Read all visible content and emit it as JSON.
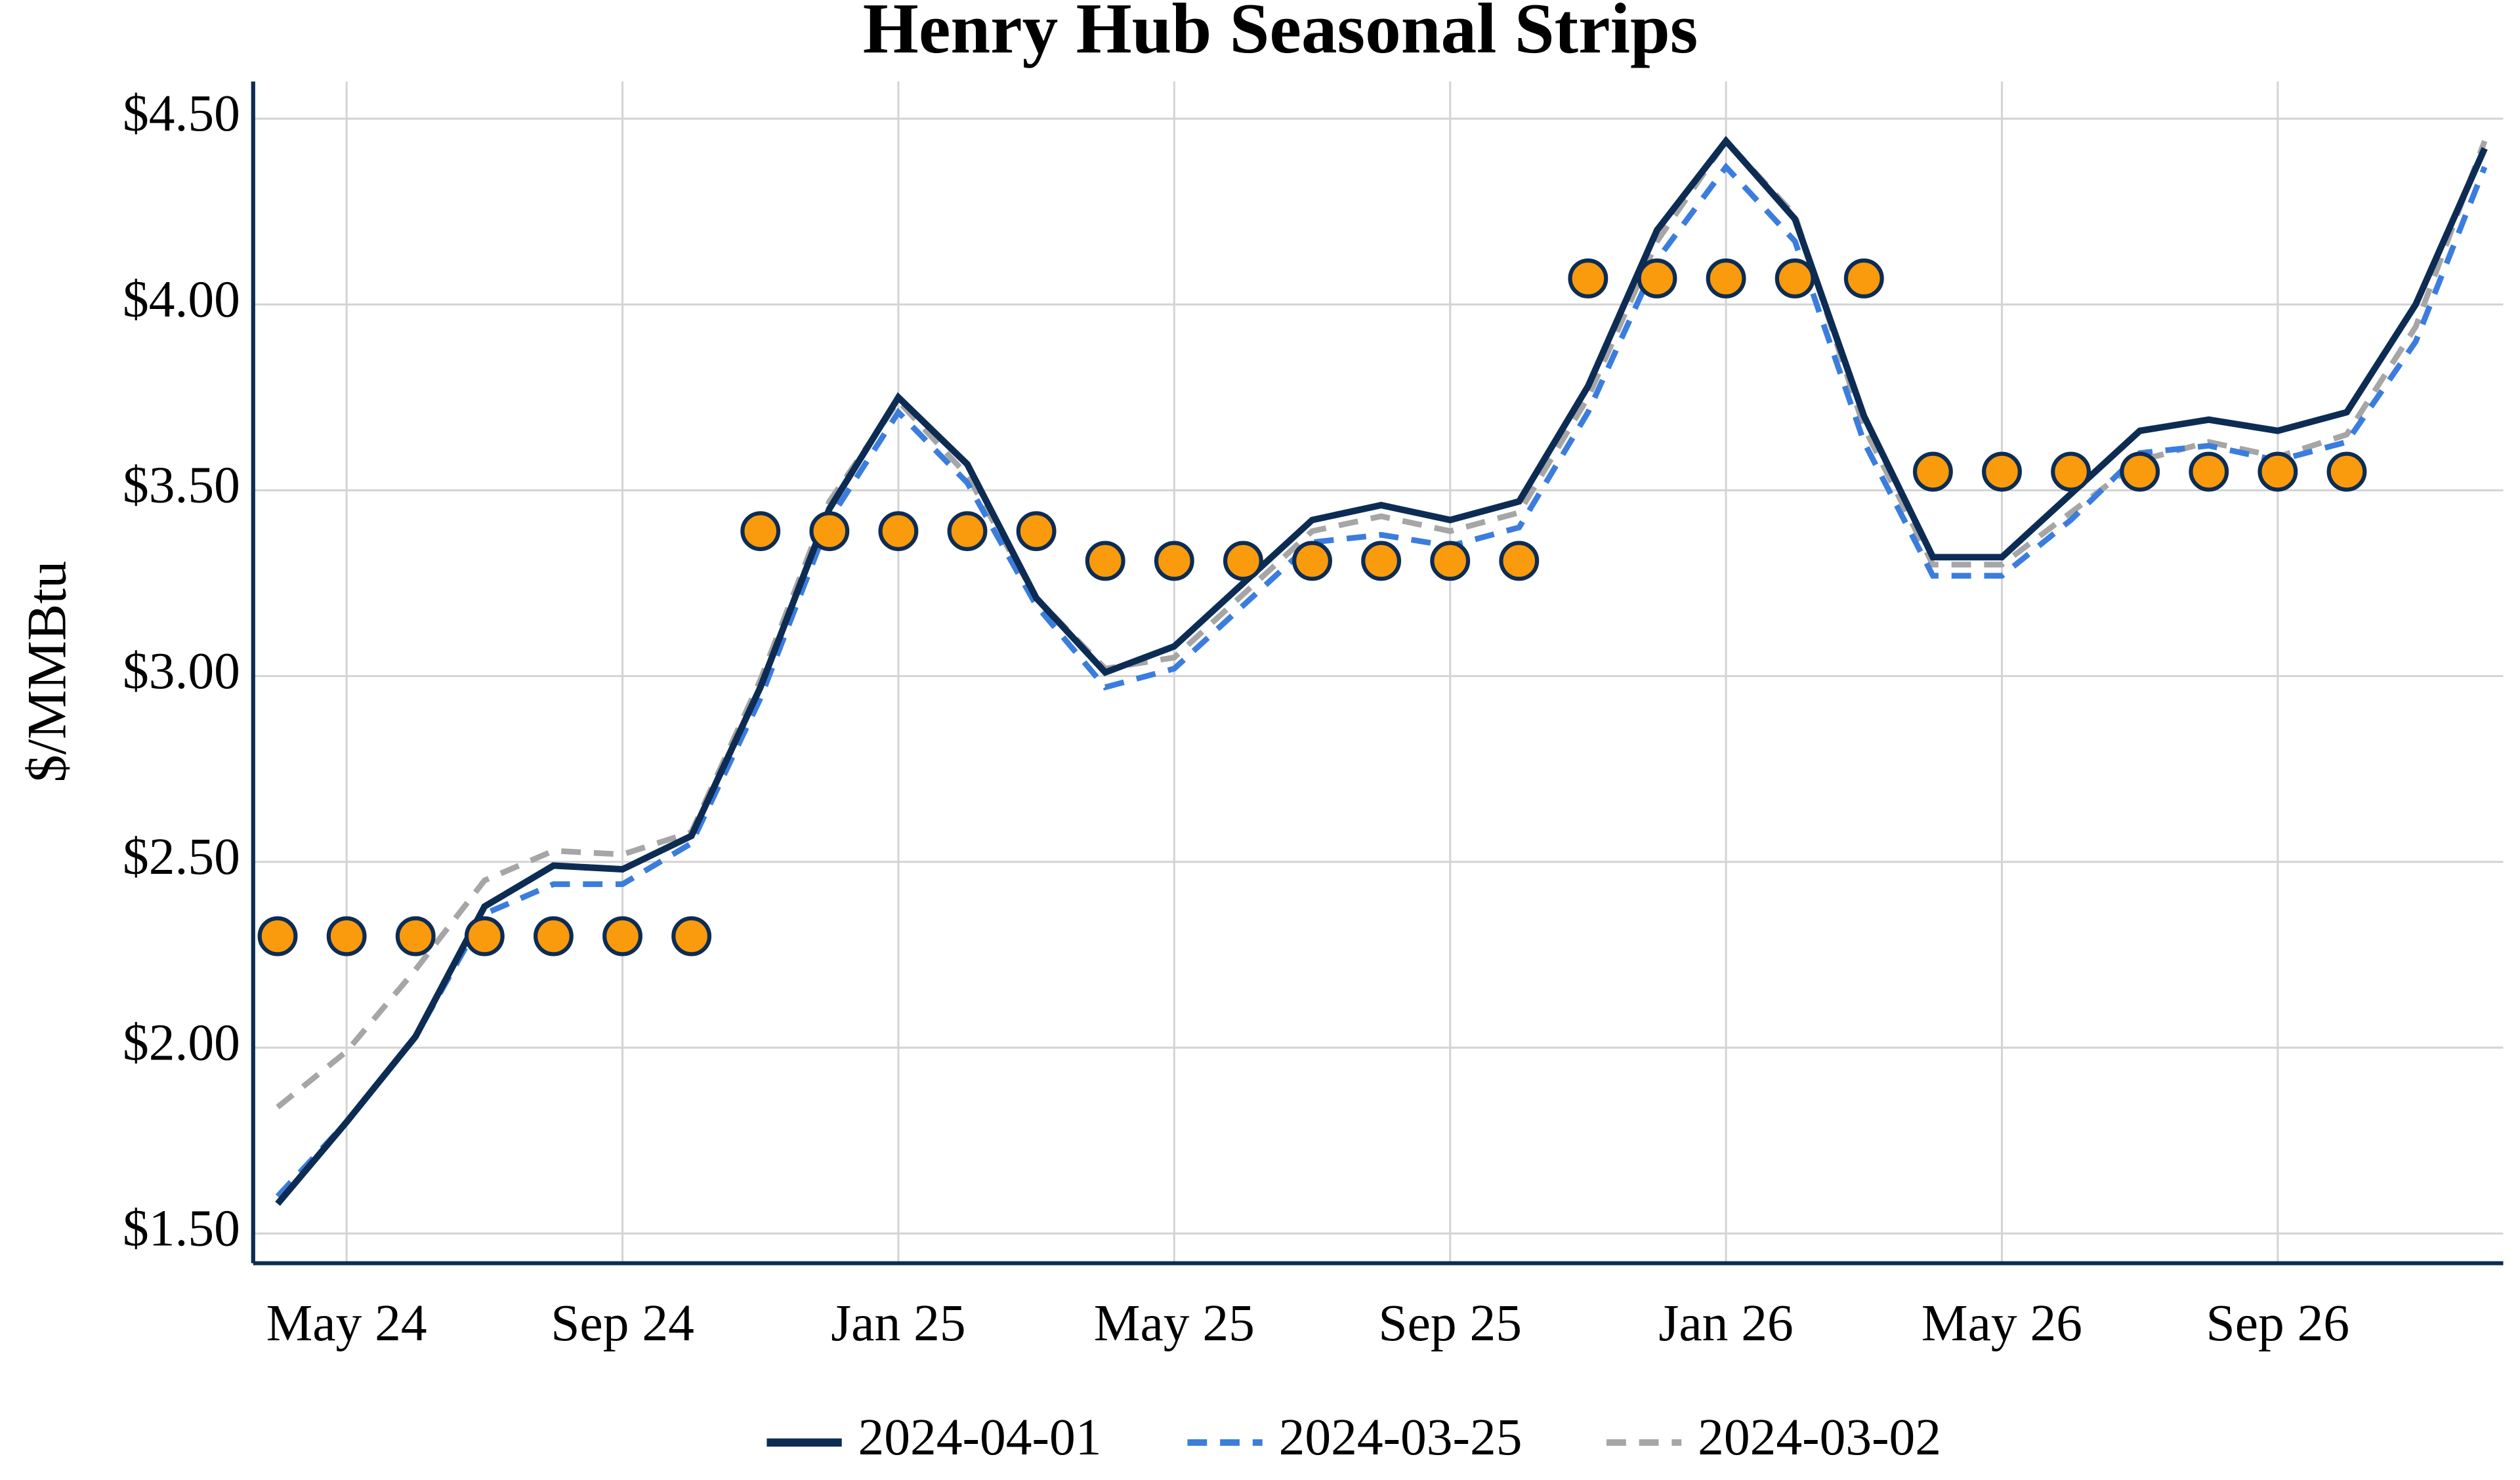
{
  "chart_data": {
    "type": "line",
    "title": "Henry Hub Seasonal Strips",
    "y_label": "$/MMBtu",
    "categories": [
      null,
      "May 24",
      null,
      null,
      null,
      "Sep 24",
      null,
      null,
      null,
      "Jan 25",
      null,
      null,
      null,
      "May 25",
      null,
      null,
      null,
      "Sep 25",
      null,
      null,
      null,
      "Jan 26",
      null,
      null,
      null,
      "May 26",
      null,
      null,
      null,
      "Sep 26",
      null,
      null,
      null
    ],
    "series": [
      {
        "name": "2024-04-01",
        "color": "#0d2c54",
        "dash": "solid",
        "values": [
          1.58,
          1.8,
          2.03,
          2.38,
          2.49,
          2.48,
          2.57,
          2.97,
          3.45,
          3.75,
          3.57,
          3.21,
          3.01,
          3.08,
          3.25,
          3.42,
          3.46,
          3.42,
          3.47,
          3.78,
          4.2,
          4.44,
          4.23,
          3.7,
          3.32,
          3.32,
          3.49,
          3.66,
          3.69,
          3.66,
          3.71,
          4.0,
          4.42
        ]
      },
      {
        "name": "2024-03-25",
        "color": "#3b7ddd",
        "dash": "dashed",
        "values": [
          1.6,
          1.8,
          2.03,
          2.36,
          2.44,
          2.44,
          2.55,
          2.94,
          3.42,
          3.71,
          3.52,
          3.19,
          2.97,
          3.02,
          3.19,
          3.36,
          3.38,
          3.35,
          3.4,
          3.71,
          4.12,
          4.37,
          4.17,
          3.63,
          3.27,
          3.27,
          3.42,
          3.6,
          3.62,
          3.58,
          3.63,
          3.9,
          4.37
        ]
      },
      {
        "name": "2024-03-02",
        "color": "#a6a6a6",
        "dash": "dashed",
        "values": [
          1.84,
          1.99,
          2.21,
          2.45,
          2.53,
          2.52,
          2.58,
          2.99,
          3.47,
          3.74,
          3.54,
          3.21,
          3.02,
          3.05,
          3.22,
          3.39,
          3.43,
          3.39,
          3.44,
          3.75,
          4.17,
          4.44,
          4.24,
          3.67,
          3.3,
          3.3,
          3.44,
          3.58,
          3.63,
          3.59,
          3.65,
          3.94,
          4.44
        ]
      },
      {
        "color": "#f99b0c",
        "markers": true,
        "values": [
          2.3,
          2.3,
          2.3,
          2.3,
          2.3,
          2.3,
          2.3,
          3.39,
          3.39,
          3.39,
          3.39,
          3.39,
          3.31,
          3.31,
          3.31,
          3.31,
          3.31,
          3.31,
          3.31,
          4.07,
          4.07,
          4.07,
          4.07,
          4.07,
          3.55,
          3.55,
          3.55,
          3.55,
          3.55,
          3.55,
          3.55,
          null,
          null
        ]
      }
    ],
    "ylim": [
      1.42,
      4.6
    ],
    "yticks": [
      {
        "value": 1.5,
        "label": "$1.50"
      },
      {
        "value": 2,
        "label": "$2.00"
      },
      {
        "value": 2.5,
        "label": "$2.50"
      },
      {
        "value": 3,
        "label": "$3.00"
      },
      {
        "value": 3.5,
        "label": "$3.50"
      },
      {
        "value": 4,
        "label": "$4.00"
      },
      {
        "value": 4.5,
        "label": "$4.50"
      }
    ],
    "grid": true,
    "legend": "bottom"
  }
}
